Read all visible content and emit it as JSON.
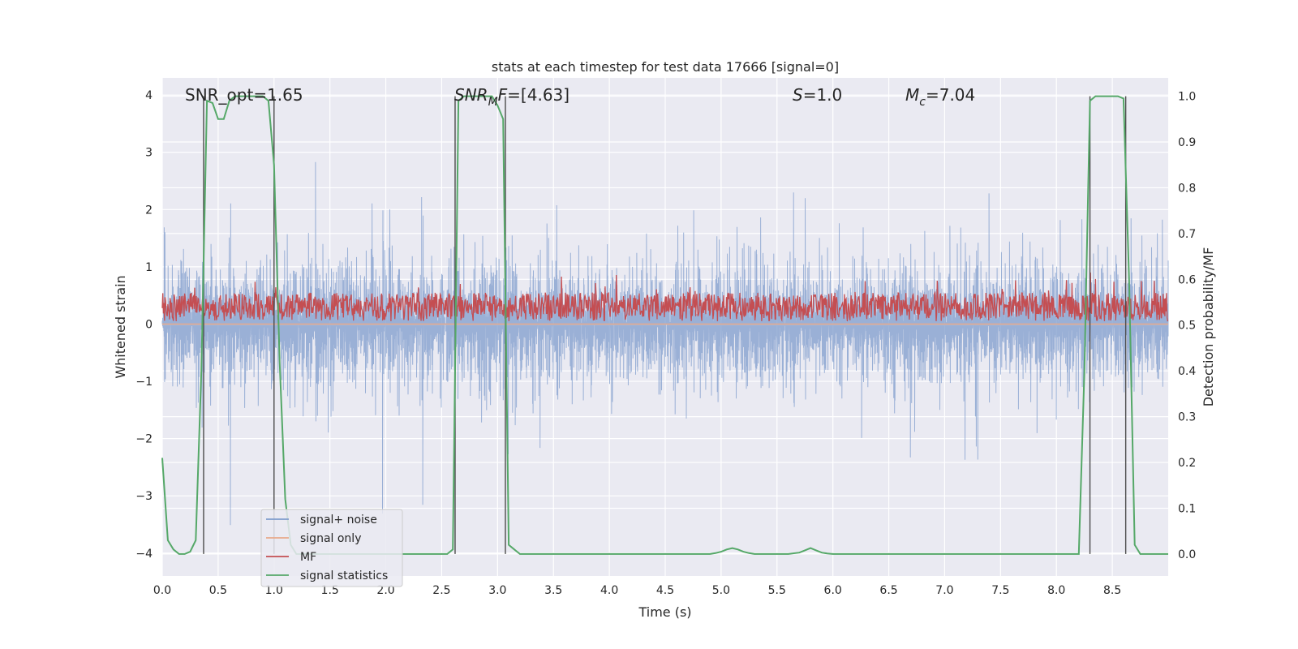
{
  "chart_data": {
    "type": "line",
    "title": "stats at each timestep for test data 17666 [signal=0]",
    "xlabel": "Time (s)",
    "ylabel": "Whitened strain",
    "ylabel_right": "Detection probability/MF",
    "xlim": [
      0,
      9.0
    ],
    "ylim": [
      -4.4,
      4.3
    ],
    "ylim_right": [
      -0.048,
      1.04
    ],
    "x_ticks": [
      "0.0",
      "0.5",
      "1.0",
      "1.5",
      "2.0",
      "2.5",
      "3.0",
      "3.5",
      "4.0",
      "4.5",
      "5.0",
      "5.5",
      "6.0",
      "6.5",
      "7.0",
      "7.5",
      "8.0",
      "8.5"
    ],
    "y_ticks": [
      "4",
      "3",
      "2",
      "1",
      "0",
      "−1",
      "−2",
      "−3",
      "−4"
    ],
    "y_right_ticks": [
      "1.0",
      "0.9",
      "0.8",
      "0.7",
      "0.6",
      "0.5",
      "0.4",
      "0.3",
      "0.2",
      "0.1",
      "0.0"
    ],
    "grid": true,
    "legend_position": "lower-left",
    "annotations": {
      "snr_opt": "SNR_opt=1.65",
      "snr_mf_main": "SNR",
      "snr_mf_sub": "M",
      "snr_mf_rest": "F=[4.63]",
      "s_main": "S",
      "s_rest": "=1.0",
      "mc_main": "M",
      "mc_sub": "c",
      "mc_rest": "=7.04"
    },
    "series": [
      {
        "name": "signal+ noise",
        "color": "#7f9ccc",
        "axis": "left",
        "approx_range": [
          -3.8,
          3.8
        ],
        "description": "noisy whitened strain, dense"
      },
      {
        "name": "signal only",
        "color": "#e8a98a",
        "axis": "left",
        "values_constant": 0.0
      },
      {
        "name": "MF",
        "color": "#c44e52",
        "axis": "left",
        "approx_range": [
          0.0,
          1.0
        ]
      },
      {
        "name": "signal statistics",
        "color": "#55a868",
        "axis": "right",
        "x": [
          0.0,
          0.05,
          0.1,
          0.15,
          0.2,
          0.25,
          0.3,
          0.35,
          0.4,
          0.45,
          0.5,
          0.55,
          0.6,
          0.65,
          0.7,
          0.75,
          0.8,
          0.85,
          0.9,
          0.95,
          1.0,
          1.05,
          1.1,
          1.15,
          1.2,
          2.5,
          2.55,
          2.6,
          2.65,
          2.7,
          2.75,
          2.8,
          2.85,
          2.9,
          2.95,
          3.0,
          3.05,
          3.1,
          3.15,
          3.2,
          4.8,
          4.9,
          4.95,
          5.0,
          5.05,
          5.1,
          5.15,
          5.2,
          5.25,
          5.3,
          5.4,
          5.5,
          5.6,
          5.7,
          5.75,
          5.8,
          5.85,
          5.9,
          5.95,
          6.0,
          6.1,
          8.1,
          8.2,
          8.25,
          8.3,
          8.35,
          8.4,
          8.45,
          8.5,
          8.55,
          8.6,
          8.65,
          8.7,
          8.75,
          8.8,
          8.85,
          9.0
        ],
        "y": [
          0.21,
          0.03,
          0.01,
          0.0,
          0.0,
          0.005,
          0.03,
          0.4,
          0.99,
          0.985,
          0.95,
          0.95,
          0.99,
          1.0,
          1.0,
          1.0,
          1.0,
          1.0,
          1.0,
          0.99,
          0.85,
          0.42,
          0.12,
          0.02,
          0.0,
          0.0,
          0.0,
          0.01,
          0.99,
          1.0,
          1.0,
          1.0,
          1.0,
          1.0,
          1.0,
          0.98,
          0.95,
          0.02,
          0.01,
          0.0,
          0.0,
          0.0,
          0.002,
          0.005,
          0.01,
          0.013,
          0.01,
          0.005,
          0.002,
          0.0,
          0.0,
          0.0,
          0.0,
          0.003,
          0.008,
          0.013,
          0.008,
          0.003,
          0.001,
          0.0,
          0.0,
          0.0,
          0.0,
          0.4,
          0.99,
          1.0,
          1.0,
          1.0,
          1.0,
          1.0,
          0.995,
          0.6,
          0.02,
          0.0,
          0.0,
          0.0,
          0.0
        ]
      }
    ],
    "vertical_markers_s": [
      0.37,
      1.0,
      2.62,
      3.07,
      8.3,
      8.62
    ]
  },
  "colors": {
    "plot_bg": "#eaeaf2",
    "grid": "#ffffff",
    "signal_noise": "#7f9ccc",
    "signal_only": "#e8a98a",
    "mf": "#c44e52",
    "stats": "#55a868",
    "marker": "#4c4c4c"
  }
}
